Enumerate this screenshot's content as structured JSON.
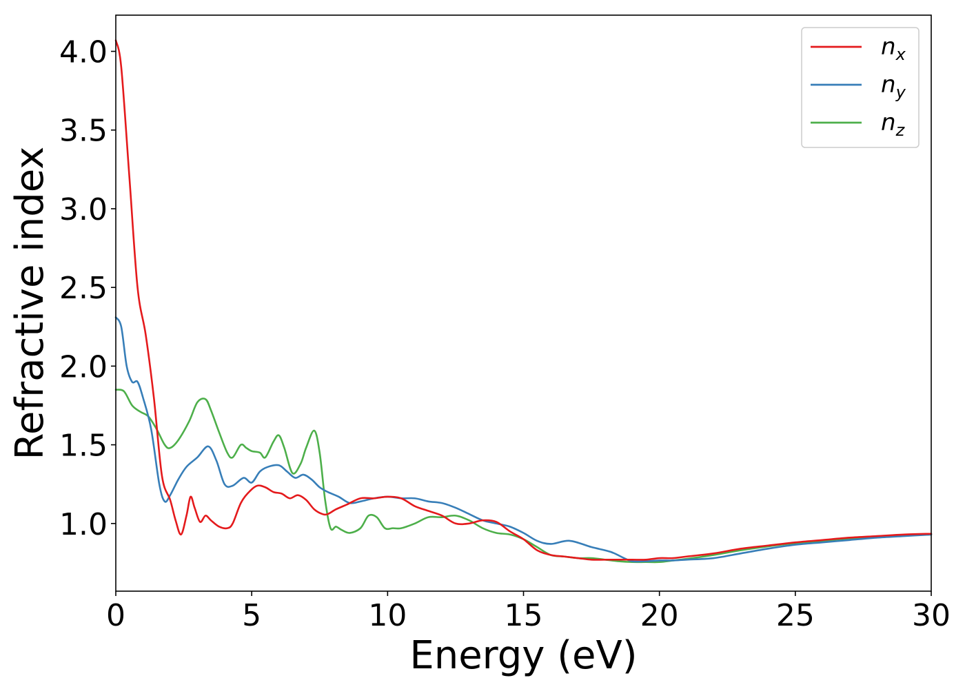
{
  "chart_data": {
    "type": "line",
    "xlabel": "Energy (eV)",
    "ylabel": "Refractive index",
    "xlim": [
      0,
      30
    ],
    "ylim": [
      0.57,
      4.23
    ],
    "xticks": [
      0,
      5,
      10,
      15,
      20,
      25,
      30
    ],
    "xtick_labels": [
      "0",
      "5",
      "10",
      "15",
      "20",
      "25",
      "30"
    ],
    "yticks": [
      1.0,
      1.5,
      2.0,
      2.5,
      3.0,
      3.5,
      4.0
    ],
    "ytick_labels": [
      "1.0",
      "1.5",
      "2.0",
      "2.5",
      "3.0",
      "3.5",
      "4.0"
    ],
    "grid": false,
    "legend_position": "top-right",
    "series": [
      {
        "name": "n_x",
        "legend_base": "n",
        "legend_sub": "x",
        "color": "#e41a1c",
        "x": [
          0,
          0.2,
          0.5,
          0.8,
          1.1,
          1.4,
          1.7,
          2.0,
          2.2,
          2.4,
          2.6,
          2.75,
          2.9,
          3.1,
          3.3,
          3.5,
          3.8,
          4.1,
          4.3,
          4.6,
          4.9,
          5.2,
          5.5,
          5.8,
          6.1,
          6.4,
          6.7,
          7.0,
          7.3,
          7.6,
          7.8,
          8.1,
          8.5,
          9.0,
          9.5,
          10.0,
          10.5,
          11.0,
          11.5,
          12.0,
          12.5,
          13.0,
          13.5,
          14.0,
          14.5,
          15.0,
          15.5,
          16.0,
          16.5,
          17.0,
          17.5,
          18.0,
          18.5,
          19.0,
          19.5,
          20.0,
          20.5,
          21.0,
          22.0,
          23.0,
          24.0,
          25.0,
          26.0,
          27.0,
          28.0,
          29.0,
          30.0
        ],
        "y": [
          4.07,
          3.9,
          3.2,
          2.5,
          2.2,
          1.8,
          1.3,
          1.15,
          1.02,
          0.93,
          1.05,
          1.17,
          1.1,
          1.01,
          1.05,
          1.02,
          0.98,
          0.97,
          1.0,
          1.13,
          1.2,
          1.24,
          1.23,
          1.2,
          1.19,
          1.16,
          1.18,
          1.15,
          1.09,
          1.06,
          1.06,
          1.09,
          1.12,
          1.16,
          1.16,
          1.17,
          1.16,
          1.11,
          1.08,
          1.05,
          1.0,
          1.0,
          1.02,
          1.01,
          0.95,
          0.9,
          0.83,
          0.8,
          0.79,
          0.78,
          0.77,
          0.77,
          0.77,
          0.77,
          0.77,
          0.78,
          0.78,
          0.79,
          0.81,
          0.84,
          0.86,
          0.88,
          0.895,
          0.91,
          0.92,
          0.93,
          0.935
        ]
      },
      {
        "name": "n_y",
        "legend_base": "n",
        "legend_sub": "y",
        "color": "#377eb8",
        "x": [
          0,
          0.2,
          0.4,
          0.6,
          0.8,
          1.0,
          1.3,
          1.6,
          1.8,
          2.0,
          2.3,
          2.6,
          3.0,
          3.4,
          3.7,
          4.0,
          4.3,
          4.7,
          5.0,
          5.3,
          5.6,
          6.0,
          6.3,
          6.6,
          6.9,
          7.2,
          7.5,
          7.8,
          8.2,
          8.6,
          9.0,
          9.5,
          10.0,
          10.5,
          11.0,
          11.5,
          12.0,
          12.5,
          13.0,
          13.5,
          14.0,
          14.5,
          15.0,
          15.5,
          16.0,
          16.7,
          17.5,
          18.2,
          18.7,
          19.0,
          19.5,
          20.0,
          20.5,
          21.0,
          22.0,
          23.0,
          24.0,
          25.0,
          26.0,
          27.0,
          28.0,
          29.0,
          30.0
        ],
        "y": [
          2.31,
          2.25,
          2.0,
          1.9,
          1.9,
          1.8,
          1.6,
          1.25,
          1.14,
          1.18,
          1.28,
          1.36,
          1.42,
          1.49,
          1.4,
          1.25,
          1.24,
          1.29,
          1.26,
          1.33,
          1.36,
          1.37,
          1.33,
          1.29,
          1.31,
          1.28,
          1.23,
          1.2,
          1.17,
          1.13,
          1.14,
          1.16,
          1.17,
          1.16,
          1.16,
          1.14,
          1.13,
          1.1,
          1.06,
          1.02,
          1.0,
          0.98,
          0.94,
          0.89,
          0.87,
          0.89,
          0.85,
          0.82,
          0.78,
          0.76,
          0.76,
          0.765,
          0.765,
          0.77,
          0.78,
          0.81,
          0.84,
          0.865,
          0.88,
          0.895,
          0.91,
          0.92,
          0.93
        ]
      },
      {
        "name": "n_z",
        "legend_base": "n",
        "legend_sub": "z",
        "color": "#4daf4a",
        "x": [
          0,
          0.3,
          0.6,
          0.9,
          1.2,
          1.5,
          1.8,
          2.0,
          2.3,
          2.7,
          3.0,
          3.3,
          3.5,
          3.8,
          4.1,
          4.3,
          4.6,
          4.8,
          5.0,
          5.3,
          5.5,
          5.8,
          6.0,
          6.2,
          6.5,
          6.8,
          7.0,
          7.3,
          7.5,
          7.7,
          7.9,
          8.1,
          8.3,
          8.6,
          9.0,
          9.3,
          9.6,
          9.9,
          10.2,
          10.5,
          11.0,
          11.5,
          12.0,
          12.5,
          13.0,
          13.5,
          14.0,
          14.5,
          15.0,
          15.5,
          16.0,
          16.5,
          17.0,
          17.5,
          18.0,
          18.5,
          19.0,
          19.5,
          20.0,
          20.5,
          21.0,
          22.0,
          23.0,
          24.0,
          25.0,
          26.0,
          27.0,
          28.0,
          29.0,
          30.0
        ],
        "y": [
          1.85,
          1.84,
          1.75,
          1.71,
          1.68,
          1.6,
          1.5,
          1.48,
          1.53,
          1.65,
          1.77,
          1.79,
          1.72,
          1.58,
          1.45,
          1.42,
          1.5,
          1.48,
          1.46,
          1.45,
          1.42,
          1.52,
          1.56,
          1.48,
          1.32,
          1.38,
          1.48,
          1.59,
          1.45,
          1.15,
          0.97,
          0.98,
          0.96,
          0.94,
          0.97,
          1.05,
          1.04,
          0.97,
          0.97,
          0.97,
          1.0,
          1.04,
          1.04,
          1.05,
          1.02,
          0.97,
          0.94,
          0.93,
          0.9,
          0.85,
          0.8,
          0.79,
          0.78,
          0.78,
          0.77,
          0.76,
          0.755,
          0.755,
          0.755,
          0.765,
          0.775,
          0.8,
          0.83,
          0.855,
          0.875,
          0.89,
          0.905,
          0.915,
          0.925,
          0.93
        ]
      }
    ]
  }
}
